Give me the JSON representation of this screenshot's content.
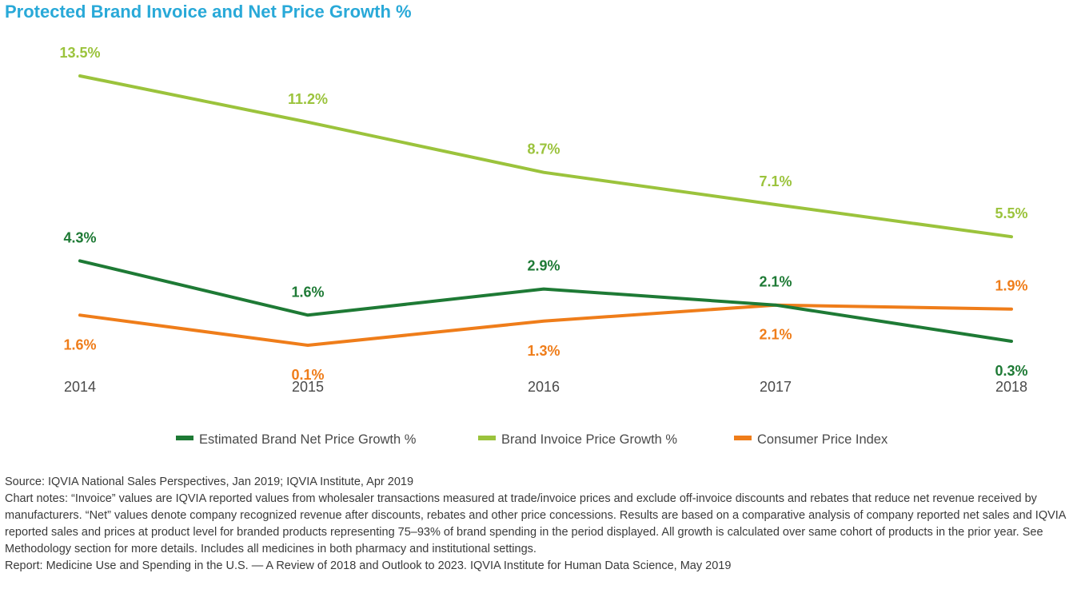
{
  "chart_data": {
    "type": "line",
    "title": "Protected Brand Invoice and Net Price Growth %",
    "categories": [
      "2014",
      "2015",
      "2016",
      "2017",
      "2018"
    ],
    "xlabel": "",
    "ylabel": "",
    "ylim": [
      -1,
      15
    ],
    "grid": false,
    "legend_position": "bottom",
    "series": [
      {
        "name": "Estimated Brand Net Price Growth %",
        "color": "#1e7a35",
        "values": [
          4.3,
          1.6,
          2.9,
          2.1,
          0.3
        ],
        "labels": [
          "4.3%",
          "1.6%",
          "2.9%",
          "2.1%",
          "0.3%"
        ],
        "label_positions": [
          "above",
          "above",
          "above",
          "above",
          "below"
        ]
      },
      {
        "name": "Brand Invoice Price Growth %",
        "color": "#9bc33c",
        "values": [
          13.5,
          11.2,
          8.7,
          7.1,
          5.5
        ],
        "labels": [
          "13.5%",
          "11.2%",
          "8.7%",
          "7.1%",
          "5.5%"
        ],
        "label_positions": [
          "above",
          "above",
          "above",
          "above",
          "above"
        ]
      },
      {
        "name": "Consumer Price Index",
        "color": "#ef7d1a",
        "values": [
          1.6,
          0.1,
          1.3,
          2.1,
          1.9
        ],
        "labels": [
          "1.6%",
          "0.1%",
          "1.3%",
          "2.1%",
          "1.9%"
        ],
        "label_positions": [
          "below",
          "below",
          "below",
          "below",
          "above"
        ]
      }
    ]
  },
  "notes": {
    "source": "Source: IQVIA National Sales Perspectives, Jan 2019; IQVIA Institute, Apr 2019",
    "chart_notes": "Chart notes: “Invoice” values are IQVIA reported values from wholesaler transactions measured at trade/invoice prices and exclude off-invoice discounts and rebates that reduce net revenue received by manufacturers. “Net” values denote company recognized revenue after discounts, rebates and other price concessions. Results are based on a comparative analysis of company reported net sales and IQVIA reported sales and prices at product level for branded products representing 75–93% of brand spending in the period displayed. All growth is calculated over same cohort of products in the prior year. See Methodology section for more details. Includes all medicines in both pharmacy and institutional settings.",
    "report": "Report: Medicine Use and Spending in the U.S. — A Review of 2018 and Outlook to 2023. IQVIA Institute for Human Data Science, May 2019"
  }
}
